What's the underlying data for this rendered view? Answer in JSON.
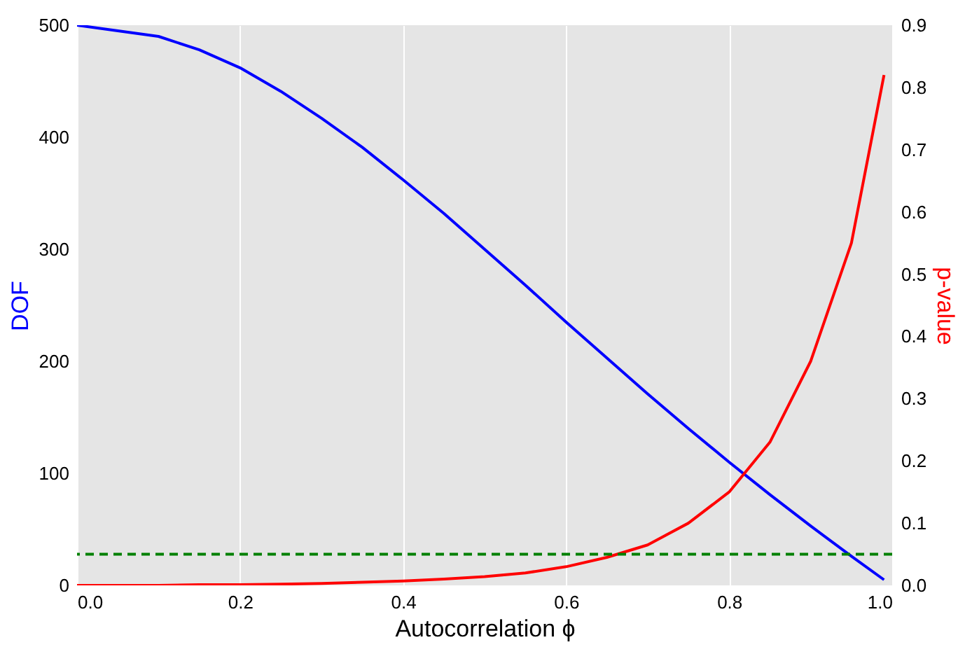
{
  "chart_data": {
    "type": "line",
    "xlabel": "Autocorrelation ϕ",
    "ylabel": "DOF",
    "y2label": "p-value",
    "x": [
      0,
      0.05,
      0.1,
      0.15,
      0.2,
      0.25,
      0.3,
      0.35,
      0.4,
      0.45,
      0.5,
      0.55,
      0.6,
      0.65,
      0.7,
      0.75,
      0.8,
      0.85,
      0.9,
      0.95,
      0.99
    ],
    "series": [
      {
        "color": "#0000ff",
        "values": [
          500,
          495,
          490,
          478,
          462,
          441,
          417,
          391,
          362,
          332,
          300,
          268,
          235,
          203,
          171,
          140,
          110,
          81,
          53,
          26,
          5
        ]
      },
      {
        "color": "#ff0000",
        "axis": "y2",
        "values": [
          0,
          0,
          0,
          0.001,
          0.001,
          0.002,
          0.003,
          0.005,
          0.007,
          0.01,
          0.014,
          0.02,
          0.03,
          0.045,
          0.065,
          0.1,
          0.15,
          0.23,
          0.36,
          0.55,
          0.82
        ]
      }
    ],
    "xlim": [
      0,
      1
    ],
    "xticks": [
      {
        "value": 0,
        "label": "0.0"
      },
      0.2,
      0.4,
      0.6,
      0.8,
      {
        "value": 1,
        "label": "1.0"
      }
    ],
    "ylim": [
      0,
      500
    ],
    "yticks": [
      0,
      100,
      200,
      300,
      400,
      500
    ],
    "y2lim": [
      0,
      0.9
    ],
    "y2ticks": [
      {
        "value": 0,
        "label": "0.0"
      },
      0.1,
      0.2,
      0.3,
      0.4,
      0.5,
      0.6,
      0.7,
      0.8,
      0.9
    ],
    "ref_lines": [
      {
        "axis": "y2",
        "value": 0.05,
        "color": "#008000",
        "line_style": "dashed"
      }
    ],
    "grid": "x",
    "line_style": "solid"
  }
}
